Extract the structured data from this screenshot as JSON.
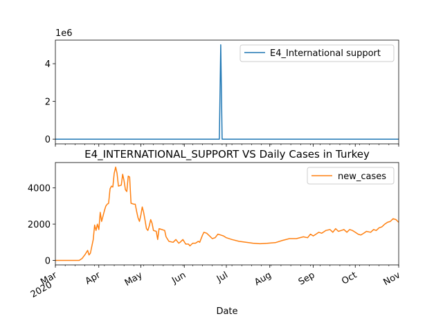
{
  "chart_data": [
    {
      "type": "line",
      "title": "",
      "xlabel": "",
      "ylabel": "",
      "offset_label": "1e6",
      "ylim": [
        -250000,
        5250000
      ],
      "yticks": [
        0,
        2,
        4
      ],
      "legend": {
        "position": "top-right"
      },
      "grid": false,
      "series": [
        {
          "name": "E4_International support",
          "color": "#1f77b4",
          "points": [
            [
              "2020-03-01",
              0
            ],
            [
              "2020-06-26",
              0
            ],
            [
              "2020-06-27",
              5000000
            ],
            [
              "2020-06-28",
              0
            ],
            [
              "2020-11-01",
              0
            ]
          ]
        }
      ]
    },
    {
      "type": "line",
      "title": "E4_INTERNATIONAL_SUPPORT VS Daily Cases in Turkey",
      "xlabel": "Date",
      "ylabel": "",
      "ylim": [
        -250,
        5400
      ],
      "yticks": [
        0,
        2000,
        4000
      ],
      "xlim": [
        "2020-03-01",
        "2020-11-01"
      ],
      "x_tick_labels": [
        {
          "date": "2020-03-01",
          "label": "Mar",
          "label2": "2020"
        },
        {
          "date": "2020-04-01",
          "label": "Apr"
        },
        {
          "date": "2020-05-01",
          "label": "May"
        },
        {
          "date": "2020-06-01",
          "label": "Jun"
        },
        {
          "date": "2020-07-01",
          "label": "Jul"
        },
        {
          "date": "2020-08-01",
          "label": "Aug"
        },
        {
          "date": "2020-09-01",
          "label": "Sep"
        },
        {
          "date": "2020-10-01",
          "label": "Oct"
        },
        {
          "date": "2020-11-01",
          "label": "Nov"
        }
      ],
      "legend": {
        "position": "top-right"
      },
      "grid": false,
      "series": [
        {
          "name": "new_cases",
          "color": "#ff7f0e",
          "points": [
            [
              "2020-03-01",
              0
            ],
            [
              "2020-03-10",
              0
            ],
            [
              "2020-03-18",
              0
            ],
            [
              "2020-03-20",
              100
            ],
            [
              "2020-03-22",
              300
            ],
            [
              "2020-03-24",
              550
            ],
            [
              "2020-03-25",
              300
            ],
            [
              "2020-03-26",
              400
            ],
            [
              "2020-03-28",
              1150
            ],
            [
              "2020-03-29",
              1950
            ],
            [
              "2020-03-30",
              1650
            ],
            [
              "2020-03-31",
              2000
            ],
            [
              "2020-04-01",
              1700
            ],
            [
              "2020-04-02",
              2650
            ],
            [
              "2020-04-03",
              2150
            ],
            [
              "2020-04-05",
              2750
            ],
            [
              "2020-04-06",
              3000
            ],
            [
              "2020-04-07",
              3100
            ],
            [
              "2020-04-08",
              3150
            ],
            [
              "2020-04-09",
              3950
            ],
            [
              "2020-04-10",
              4100
            ],
            [
              "2020-04-11",
              4050
            ],
            [
              "2020-04-12",
              4800
            ],
            [
              "2020-04-13",
              5150
            ],
            [
              "2020-04-14",
              4800
            ],
            [
              "2020-04-15",
              4100
            ],
            [
              "2020-04-17",
              4150
            ],
            [
              "2020-04-18",
              4750
            ],
            [
              "2020-04-19",
              4400
            ],
            [
              "2020-04-20",
              3900
            ],
            [
              "2020-04-21",
              3800
            ],
            [
              "2020-04-22",
              4650
            ],
            [
              "2020-04-23",
              4600
            ],
            [
              "2020-04-24",
              3150
            ],
            [
              "2020-04-26",
              3100
            ],
            [
              "2020-04-27",
              3100
            ],
            [
              "2020-04-28",
              2700
            ],
            [
              "2020-04-29",
              2350
            ],
            [
              "2020-04-30",
              2150
            ],
            [
              "2020-05-01",
              2500
            ],
            [
              "2020-05-02",
              2950
            ],
            [
              "2020-05-03",
              2650
            ],
            [
              "2020-05-04",
              2200
            ],
            [
              "2020-05-05",
              1750
            ],
            [
              "2020-05-06",
              1650
            ],
            [
              "2020-05-07",
              1900
            ],
            [
              "2020-05-08",
              2250
            ],
            [
              "2020-05-09",
              2050
            ],
            [
              "2020-05-10",
              1650
            ],
            [
              "2020-05-12",
              1600
            ],
            [
              "2020-05-13",
              1150
            ],
            [
              "2020-05-14",
              1750
            ],
            [
              "2020-05-16",
              1700
            ],
            [
              "2020-05-18",
              1650
            ],
            [
              "2020-05-19",
              1300
            ],
            [
              "2020-05-21",
              1050
            ],
            [
              "2020-05-24",
              1000
            ],
            [
              "2020-05-26",
              1150
            ],
            [
              "2020-05-27",
              1050
            ],
            [
              "2020-05-28",
              950
            ],
            [
              "2020-05-29",
              1000
            ],
            [
              "2020-05-31",
              1150
            ],
            [
              "2020-06-02",
              900
            ],
            [
              "2020-06-04",
              900
            ],
            [
              "2020-06-05",
              800
            ],
            [
              "2020-06-07",
              950
            ],
            [
              "2020-06-09",
              950
            ],
            [
              "2020-06-10",
              1000
            ],
            [
              "2020-06-11",
              1050
            ],
            [
              "2020-06-12",
              1000
            ],
            [
              "2020-06-14",
              1400
            ],
            [
              "2020-06-15",
              1550
            ],
            [
              "2020-06-17",
              1500
            ],
            [
              "2020-06-19",
              1350
            ],
            [
              "2020-06-21",
              1200
            ],
            [
              "2020-06-23",
              1250
            ],
            [
              "2020-06-25",
              1450
            ],
            [
              "2020-06-27",
              1400
            ],
            [
              "2020-06-29",
              1350
            ],
            [
              "2020-07-01",
              1250
            ],
            [
              "2020-07-05",
              1150
            ],
            [
              "2020-07-10",
              1050
            ],
            [
              "2020-07-15",
              1000
            ],
            [
              "2020-07-20",
              950
            ],
            [
              "2020-07-25",
              920
            ],
            [
              "2020-07-30",
              940
            ],
            [
              "2020-08-05",
              980
            ],
            [
              "2020-08-10",
              1100
            ],
            [
              "2020-08-15",
              1200
            ],
            [
              "2020-08-20",
              1200
            ],
            [
              "2020-08-25",
              1300
            ],
            [
              "2020-08-28",
              1250
            ],
            [
              "2020-08-30",
              1450
            ],
            [
              "2020-09-01",
              1350
            ],
            [
              "2020-09-03",
              1450
            ],
            [
              "2020-09-05",
              1550
            ],
            [
              "2020-09-07",
              1500
            ],
            [
              "2020-09-10",
              1650
            ],
            [
              "2020-09-13",
              1700
            ],
            [
              "2020-09-15",
              1550
            ],
            [
              "2020-09-17",
              1750
            ],
            [
              "2020-09-19",
              1600
            ],
            [
              "2020-09-21",
              1650
            ],
            [
              "2020-09-23",
              1700
            ],
            [
              "2020-09-25",
              1550
            ],
            [
              "2020-09-27",
              1700
            ],
            [
              "2020-09-29",
              1650
            ],
            [
              "2020-10-01",
              1550
            ],
            [
              "2020-10-03",
              1450
            ],
            [
              "2020-10-05",
              1400
            ],
            [
              "2020-10-07",
              1500
            ],
            [
              "2020-10-09",
              1600
            ],
            [
              "2020-10-12",
              1550
            ],
            [
              "2020-10-14",
              1700
            ],
            [
              "2020-10-16",
              1650
            ],
            [
              "2020-10-18",
              1800
            ],
            [
              "2020-10-20",
              1850
            ],
            [
              "2020-10-22",
              2000
            ],
            [
              "2020-10-24",
              2100
            ],
            [
              "2020-10-26",
              2150
            ],
            [
              "2020-10-28",
              2300
            ],
            [
              "2020-10-30",
              2250
            ],
            [
              "2020-11-01",
              2100
            ]
          ]
        }
      ]
    }
  ]
}
